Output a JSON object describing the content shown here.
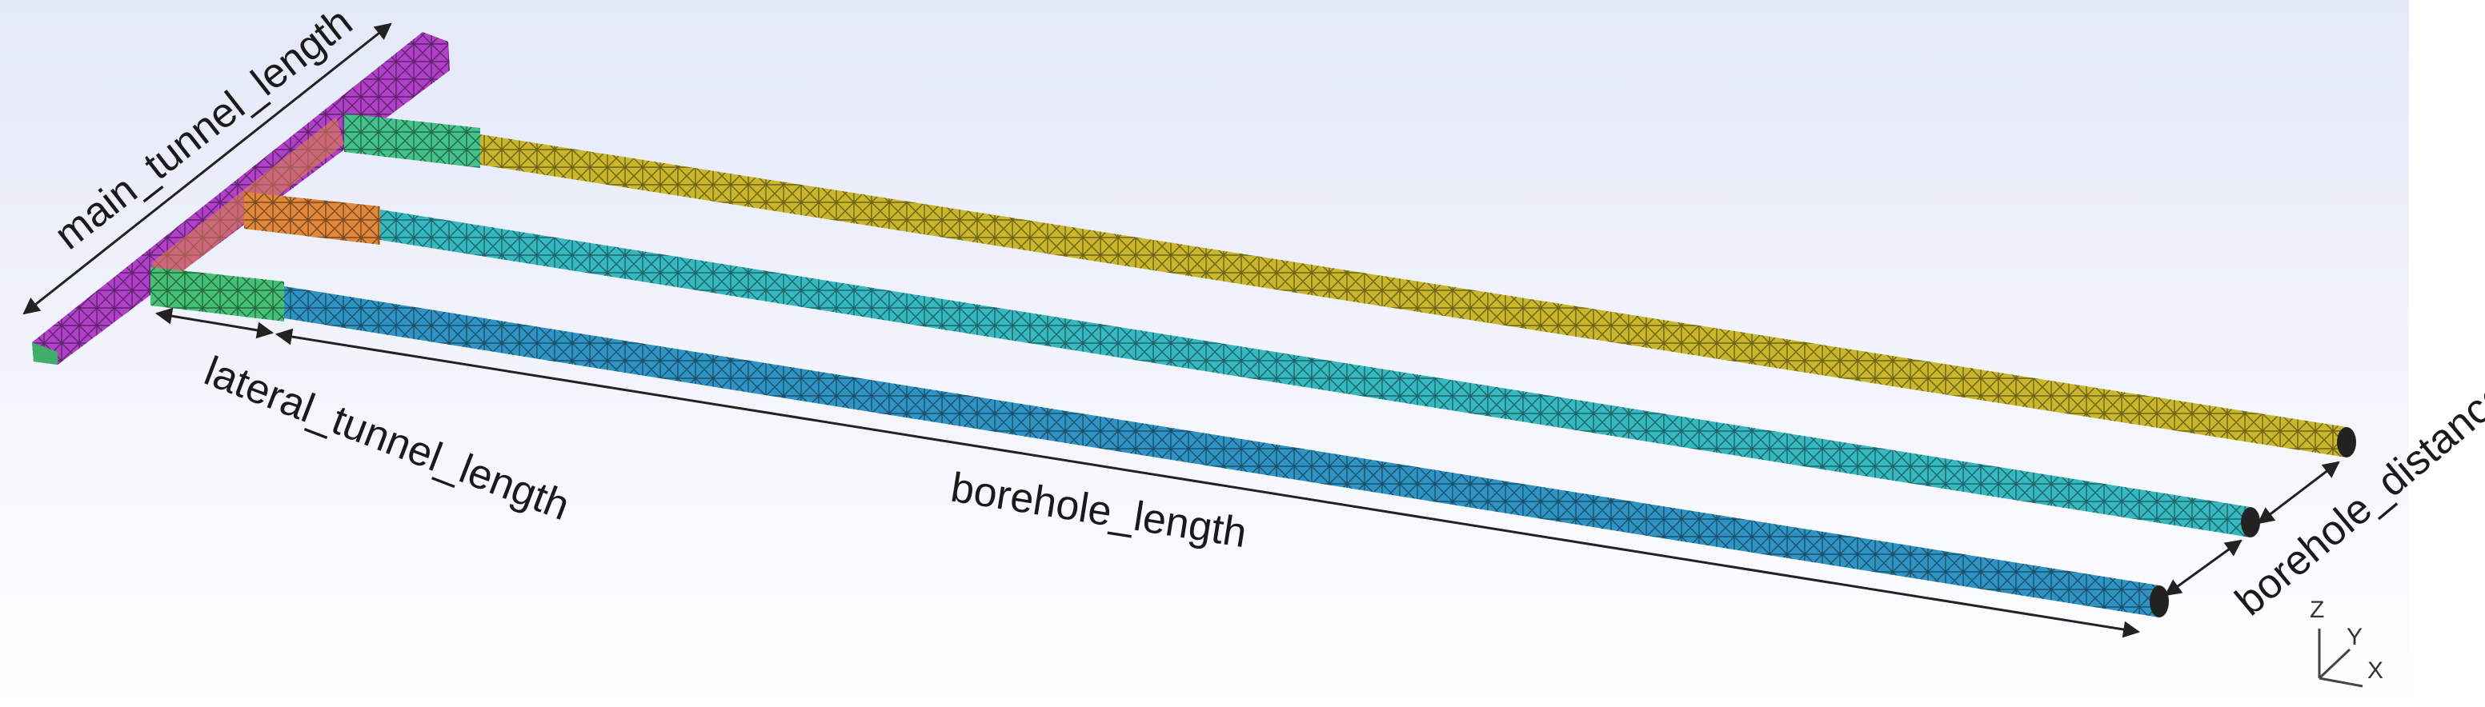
{
  "labels": {
    "main_tunnel": "main_tunnel_length",
    "lateral_tunnel": "lateral_tunnel_length",
    "borehole": "borehole_length",
    "borehole_distance": "borehole_distance"
  },
  "axes": {
    "z": "Z",
    "y": "Y",
    "x": "X"
  },
  "colors": {
    "background_top": "#e4e9f8",
    "background_bottom": "#ffffff",
    "main_tunnel": "#b040c8",
    "main_tunnel_end": "#3fae6a",
    "lateral_top": "#44c08a",
    "lateral_middle": "#e0873a",
    "lateral_bottom": "#45c074",
    "borehole_top": "#c9b62c",
    "borehole_middle": "#36b8c0",
    "borehole_bottom": "#2f93c4"
  }
}
